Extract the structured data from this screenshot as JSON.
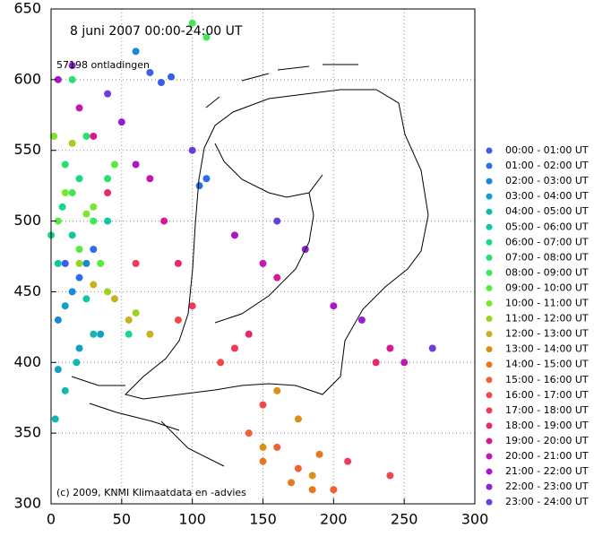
{
  "chart_data": {
    "type": "scatter",
    "title": "8 juni 2007    00:00-24:00 UT",
    "subtitle": "57198 ontladingen",
    "annotation": "(c) 2009, KNMI Klimaatdata en -advies",
    "xlim": [
      0,
      300
    ],
    "ylim": [
      300,
      650
    ],
    "xticks": [
      0,
      50,
      100,
      150,
      200,
      250,
      300
    ],
    "yticks": [
      300,
      350,
      400,
      450,
      500,
      550,
      600,
      650
    ],
    "grid": true,
    "legend": "right",
    "series": [
      {
        "name": "00:00 - 01:00 UT",
        "color": "#3a5ee8",
        "x": [
          70,
          78,
          85,
          10
        ],
        "y": [
          605,
          598,
          602,
          470
        ]
      },
      {
        "name": "01:00 - 02:00 UT",
        "color": "#2a6ee8",
        "x": [
          105,
          110,
          20,
          30
        ],
        "y": [
          525,
          530,
          460,
          480
        ]
      },
      {
        "name": "02:00 - 03:00 UT",
        "color": "#1a88d8",
        "x": [
          15,
          25,
          60,
          5
        ],
        "y": [
          450,
          470,
          620,
          430
        ]
      },
      {
        "name": "03:00 - 04:00 UT",
        "color": "#12a0c8",
        "x": [
          5,
          20,
          35,
          10
        ],
        "y": [
          395,
          410,
          420,
          440
        ]
      },
      {
        "name": "04:00 - 05:00 UT",
        "color": "#10b8b0",
        "x": [
          10,
          30,
          3,
          18
        ],
        "y": [
          380,
          420,
          360,
          400
        ]
      },
      {
        "name": "05:00 - 06:00 UT",
        "color": "#10c8a0",
        "x": [
          5,
          15,
          40,
          25
        ],
        "y": [
          470,
          490,
          500,
          445
        ]
      },
      {
        "name": "06:00 - 07:00 UT",
        "color": "#18d888",
        "x": [
          8,
          20,
          55,
          0
        ],
        "y": [
          510,
          530,
          420,
          490
        ]
      },
      {
        "name": "07:00 - 08:00 UT",
        "color": "#28e070",
        "x": [
          10,
          25,
          40,
          15
        ],
        "y": [
          540,
          560,
          530,
          600
        ]
      },
      {
        "name": "08:00 - 09:00 UT",
        "color": "#40e858",
        "x": [
          100,
          110,
          15,
          30
        ],
        "y": [
          640,
          630,
          520,
          500
        ]
      },
      {
        "name": "09:00 - 10:00 UT",
        "color": "#58ea40",
        "x": [
          5,
          20,
          35,
          45
        ],
        "y": [
          500,
          480,
          470,
          540
        ]
      },
      {
        "name": "10:00 - 11:00 UT",
        "color": "#78e828",
        "x": [
          10,
          25,
          2,
          30
        ],
        "y": [
          520,
          505,
          560,
          510
        ]
      },
      {
        "name": "11:00 - 12:00 UT",
        "color": "#a0d020",
        "x": [
          20,
          40,
          15,
          60
        ],
        "y": [
          470,
          450,
          555,
          435
        ]
      },
      {
        "name": "12:00 - 13:00 UT",
        "color": "#c8b020",
        "x": [
          45,
          55,
          70,
          30
        ],
        "y": [
          445,
          430,
          420,
          455
        ]
      },
      {
        "name": "13:00 - 14:00 UT",
        "color": "#d89018",
        "x": [
          160,
          175,
          150,
          185
        ],
        "y": [
          380,
          360,
          340,
          320
        ]
      },
      {
        "name": "14:00 - 15:00 UT",
        "color": "#e87820",
        "x": [
          150,
          170,
          185,
          190
        ],
        "y": [
          330,
          315,
          310,
          335
        ]
      },
      {
        "name": "15:00 - 16:00 UT",
        "color": "#f06030",
        "x": [
          140,
          160,
          175,
          200
        ],
        "y": [
          350,
          340,
          325,
          310
        ]
      },
      {
        "name": "16:00 - 17:00 UT",
        "color": "#f04848",
        "x": [
          90,
          120,
          150,
          240
        ],
        "y": [
          430,
          400,
          370,
          320
        ]
      },
      {
        "name": "17:00 - 18:00 UT",
        "color": "#f03858",
        "x": [
          60,
          100,
          130,
          210
        ],
        "y": [
          470,
          440,
          410,
          330
        ]
      },
      {
        "name": "18:00 - 19:00 UT",
        "color": "#e82870",
        "x": [
          40,
          90,
          140,
          230
        ],
        "y": [
          520,
          470,
          420,
          400
        ]
      },
      {
        "name": "19:00 - 20:00 UT",
        "color": "#d81890",
        "x": [
          30,
          80,
          160,
          240
        ],
        "y": [
          560,
          500,
          460,
          410
        ]
      },
      {
        "name": "20:00 - 21:00 UT",
        "color": "#c018b0",
        "x": [
          20,
          70,
          150,
          250
        ],
        "y": [
          580,
          530,
          470,
          400
        ]
      },
      {
        "name": "21:00 - 22:00 UT",
        "color": "#a818c8",
        "x": [
          5,
          60,
          130,
          200
        ],
        "y": [
          600,
          540,
          490,
          440
        ]
      },
      {
        "name": "22:00 - 23:00 UT",
        "color": "#9020d0",
        "x": [
          15,
          50,
          180,
          220
        ],
        "y": [
          610,
          570,
          480,
          430
        ]
      },
      {
        "name": "23:00 - 24:00 UT",
        "color": "#6840d8",
        "x": [
          40,
          100,
          160,
          270
        ],
        "y": [
          590,
          550,
          500,
          410
        ]
      }
    ]
  }
}
